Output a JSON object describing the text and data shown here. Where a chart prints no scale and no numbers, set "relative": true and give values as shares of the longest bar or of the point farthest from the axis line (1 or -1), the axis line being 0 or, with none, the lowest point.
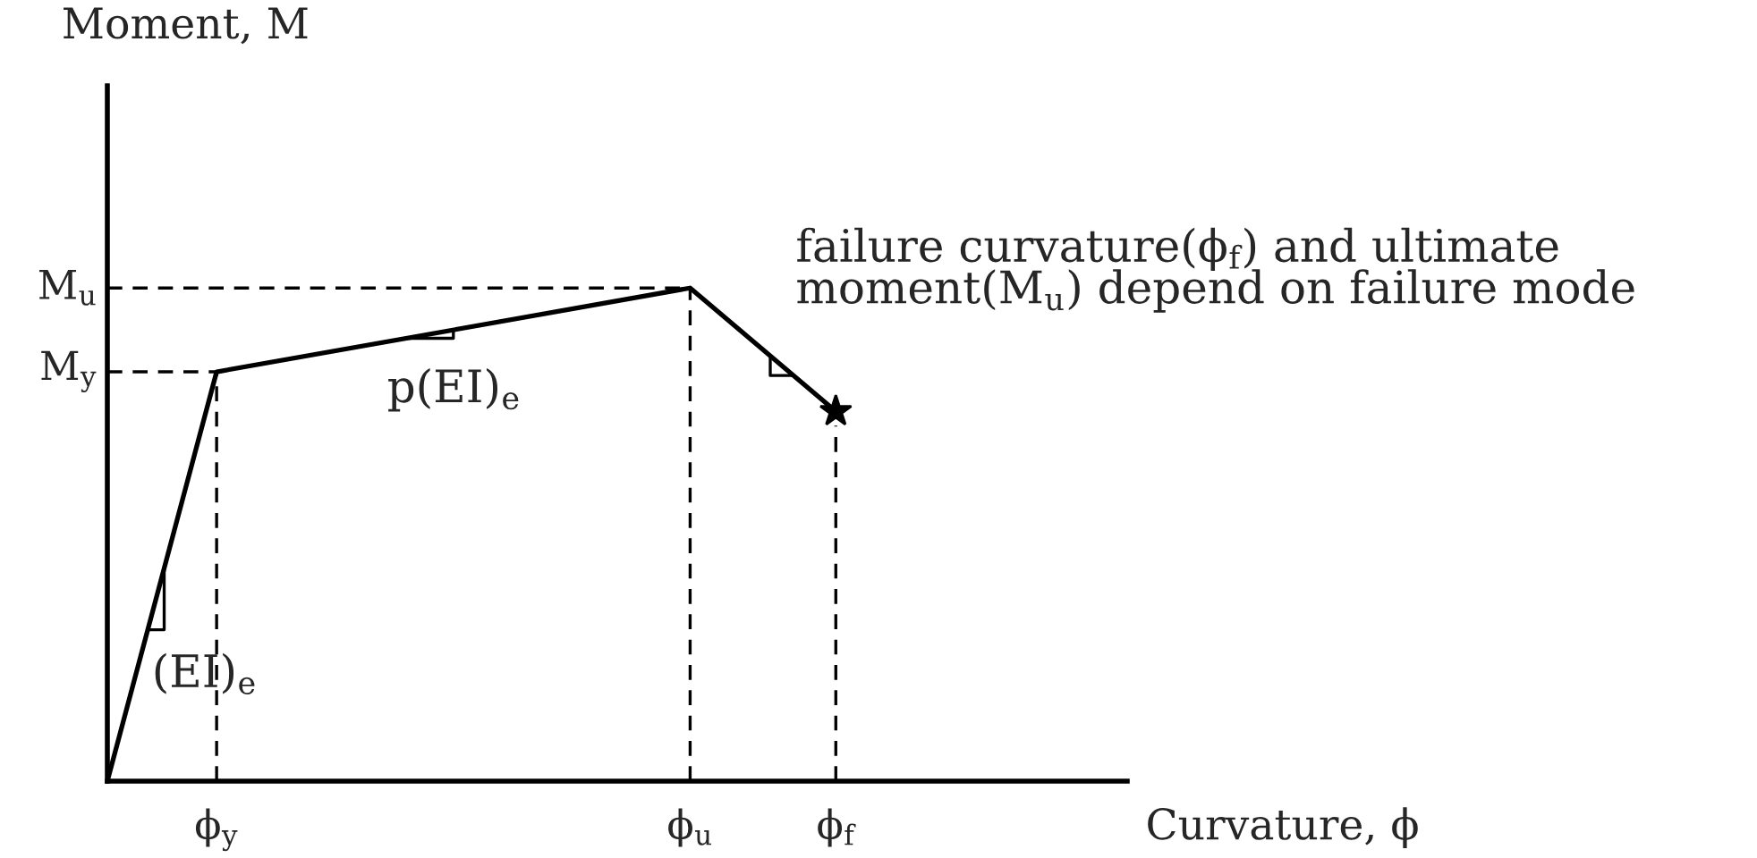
{
  "chart_data": {
    "type": "line",
    "relative": true,
    "xlabel": "Curvature, ϕ",
    "ylabel": "Moment, M",
    "grid": false,
    "ylim": [
      0,
      1.41
    ],
    "categories": [
      null,
      null,
      null,
      "ϕ$_{y}$",
      null,
      null,
      null,
      null,
      null,
      null,
      null,
      null,
      null,
      null,
      null,
      null,
      "ϕ$_{u}$",
      null,
      null,
      null,
      "ϕ$_{f}$",
      null,
      null,
      null,
      null,
      null,
      null,
      null,
      null
    ],
    "series": [
      {
        "color": "#000000",
        "values": [
          0,
          null,
          null,
          0.83,
          null,
          null,
          null,
          null,
          null,
          null,
          null,
          null,
          null,
          null,
          null,
          null,
          1,
          null,
          null,
          null,
          0.75,
          null,
          null,
          null,
          null,
          null,
          null,
          null,
          null
        ],
        "line_style": "solid"
      }
    ],
    "ref_lines": [
      {
        "axis": "y",
        "value": 0.83,
        "label": "M$_{y}$",
        "color": "#000000",
        "line_style": "dashed"
      },
      {
        "axis": "y",
        "value": 1,
        "label": "M$_{u}$",
        "color": "#000000",
        "line_style": "dashed"
      },
      {
        "axis": "x",
        "value": "ϕ$_{y}$",
        "color": "#000000",
        "line_style": "dashed"
      },
      {
        "axis": "x",
        "value": "ϕ$_{u}$",
        "color": "#000000",
        "line_style": "dashed"
      },
      {
        "axis": "x",
        "value": "ϕ$_{f}$",
        "color": "#000000",
        "line_style": "dashed"
      }
    ],
    "annotations": [
      "(EI)$_{e}$",
      "p(EI)$_{e}$",
      "failure curvature(ϕ$_{f}$) and ultimate\nmoment(M$_{u}$) depend on failure mode"
    ]
  }
}
